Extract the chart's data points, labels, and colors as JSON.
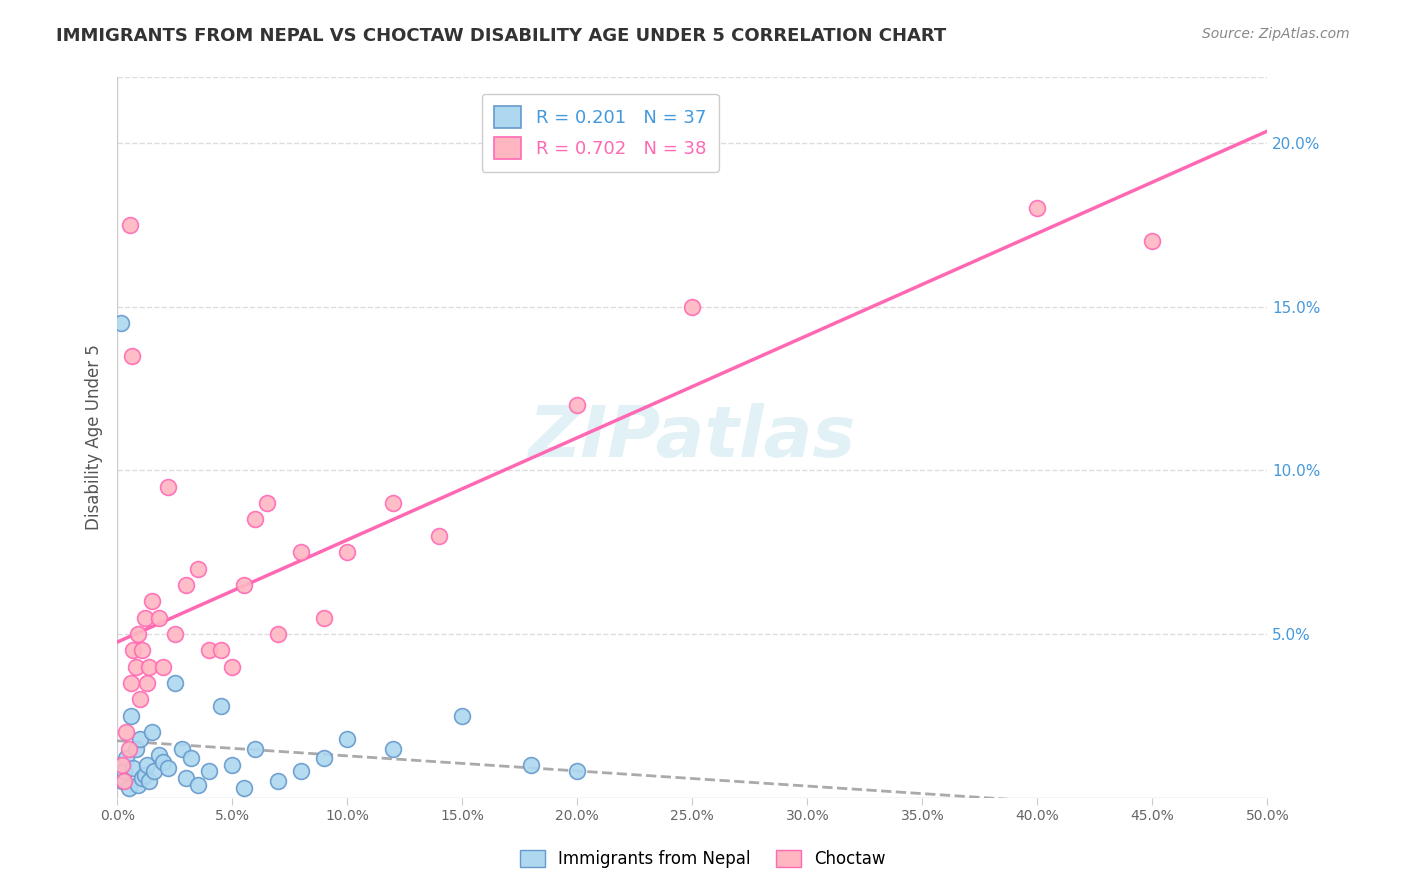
{
  "title": "IMMIGRANTS FROM NEPAL VS CHOCTAW DISABILITY AGE UNDER 5 CORRELATION CHART",
  "source": "Source: ZipAtlas.com",
  "ylabel": "Disability Age Under 5",
  "legend_blue_r": "R = 0.201",
  "legend_blue_n": "N = 37",
  "legend_pink_r": "R = 0.702",
  "legend_pink_n": "N = 38",
  "x_min": 0.0,
  "x_max": 50.0,
  "y_min": 0.0,
  "y_max": 22.0,
  "right_yticks": [
    5.0,
    10.0,
    15.0,
    20.0
  ],
  "watermark": "ZIPatlas",
  "blue_color": "#ADD8F0",
  "blue_edge": "#6699CC",
  "pink_color": "#FFB6C1",
  "pink_edge": "#FF69B4",
  "blue_scatter": [
    [
      0.2,
      0.5
    ],
    [
      0.3,
      0.8
    ],
    [
      0.4,
      1.2
    ],
    [
      0.5,
      0.3
    ],
    [
      0.6,
      2.5
    ],
    [
      0.7,
      0.9
    ],
    [
      0.8,
      1.5
    ],
    [
      0.9,
      0.4
    ],
    [
      1.0,
      1.8
    ],
    [
      1.1,
      0.6
    ],
    [
      1.2,
      0.7
    ],
    [
      1.3,
      1.0
    ],
    [
      1.4,
      0.5
    ],
    [
      1.5,
      2.0
    ],
    [
      1.6,
      0.8
    ],
    [
      1.8,
      1.3
    ],
    [
      2.0,
      1.1
    ],
    [
      2.2,
      0.9
    ],
    [
      2.5,
      3.5
    ],
    [
      2.8,
      1.5
    ],
    [
      3.0,
      0.6
    ],
    [
      3.2,
      1.2
    ],
    [
      3.5,
      0.4
    ],
    [
      4.0,
      0.8
    ],
    [
      4.5,
      2.8
    ],
    [
      5.0,
      1.0
    ],
    [
      5.5,
      0.3
    ],
    [
      6.0,
      1.5
    ],
    [
      7.0,
      0.5
    ],
    [
      8.0,
      0.8
    ],
    [
      9.0,
      1.2
    ],
    [
      10.0,
      1.8
    ],
    [
      12.0,
      1.5
    ],
    [
      0.15,
      14.5
    ],
    [
      15.0,
      2.5
    ],
    [
      18.0,
      1.0
    ],
    [
      20.0,
      0.8
    ]
  ],
  "pink_scatter": [
    [
      0.2,
      1.0
    ],
    [
      0.3,
      0.5
    ],
    [
      0.4,
      2.0
    ],
    [
      0.5,
      1.5
    ],
    [
      0.6,
      3.5
    ],
    [
      0.7,
      4.5
    ],
    [
      0.8,
      4.0
    ],
    [
      0.9,
      5.0
    ],
    [
      1.0,
      3.0
    ],
    [
      1.1,
      4.5
    ],
    [
      1.2,
      5.5
    ],
    [
      1.3,
      3.5
    ],
    [
      1.4,
      4.0
    ],
    [
      1.5,
      6.0
    ],
    [
      1.8,
      5.5
    ],
    [
      2.0,
      4.0
    ],
    [
      2.2,
      9.5
    ],
    [
      2.5,
      5.0
    ],
    [
      3.0,
      6.5
    ],
    [
      3.5,
      7.0
    ],
    [
      4.0,
      4.5
    ],
    [
      4.5,
      4.5
    ],
    [
      5.0,
      4.0
    ],
    [
      5.5,
      6.5
    ],
    [
      6.0,
      8.5
    ],
    [
      6.5,
      9.0
    ],
    [
      7.0,
      5.0
    ],
    [
      8.0,
      7.5
    ],
    [
      9.0,
      5.5
    ],
    [
      10.0,
      7.5
    ],
    [
      12.0,
      9.0
    ],
    [
      14.0,
      8.0
    ],
    [
      0.55,
      17.5
    ],
    [
      0.65,
      13.5
    ],
    [
      20.0,
      12.0
    ],
    [
      25.0,
      15.0
    ],
    [
      40.0,
      18.0
    ],
    [
      45.0,
      17.0
    ]
  ],
  "bg_color": "#FFFFFF",
  "grid_color": "#DDDDDD",
  "title_color": "#333333",
  "blue_text_color": "#4499DD",
  "pink_text_color": "#FF69B4",
  "source_color": "#888888"
}
